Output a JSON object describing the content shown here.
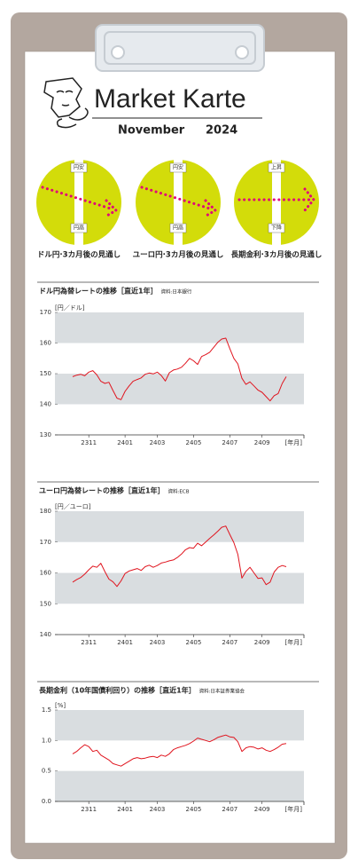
{
  "header": {
    "title": "Market Karte",
    "month": "November",
    "year": "2024"
  },
  "outlooks": [
    {
      "top": "円安",
      "bottom": "円高",
      "caption": "ドル円·3カ月後の見通し"
    },
    {
      "top": "円安",
      "bottom": "円高",
      "caption": "ユーロ円·3カ月後の見通し"
    },
    {
      "top": "上昇",
      "bottom": "下降",
      "caption": "長期金利·3カ月後の見通し"
    }
  ],
  "chart_data": [
    {
      "type": "line",
      "title": "ドル円為替レートの推移［直近1年］",
      "source": "資料:日本銀行",
      "y_label": "[円／ドル]",
      "x_label": "[年月]",
      "color": "#e0141e",
      "categories": [
        null,
        null,
        null,
        null,
        "2311",
        null,
        null,
        null,
        null,
        null,
        null,
        null,
        null,
        "2401",
        null,
        null,
        null,
        null,
        null,
        null,
        null,
        "2403",
        null,
        null,
        null,
        null,
        null,
        null,
        null,
        null,
        "2405",
        null,
        null,
        null,
        null,
        null,
        null,
        null,
        null,
        "2407",
        null,
        null,
        null,
        null,
        null,
        null,
        null,
        "2409",
        null,
        null,
        null,
        null,
        null,
        null
      ],
      "values": [
        149.0,
        149.5,
        149.8,
        149.3,
        150.5,
        151.0,
        149.6,
        147.5,
        146.8,
        147.2,
        144.5,
        142.0,
        141.5,
        144.2,
        146.0,
        147.5,
        148.1,
        148.6,
        149.8,
        150.2,
        149.9,
        150.5,
        149.4,
        147.6,
        150.3,
        151.2,
        151.5,
        152.1,
        153.4,
        155.0,
        154.2,
        153.0,
        155.6,
        156.2,
        157.0,
        158.6,
        160.2,
        161.3,
        161.6,
        158.2,
        155.0,
        153.2,
        148.5,
        146.5,
        147.3,
        146.0,
        144.6,
        143.9,
        142.5,
        141.1,
        142.8,
        143.5,
        146.8,
        149.0
      ],
      "ylim": [
        130,
        170
      ],
      "yticks": [
        130,
        140,
        150,
        160,
        170
      ]
    },
    {
      "type": "line",
      "title": "ユーロ円為替レートの推移［直近1年］",
      "source": "資料:ECB",
      "y_label": "[円／ユーロ]",
      "x_label": "[年月]",
      "color": "#e0141e",
      "categories": [
        null,
        null,
        null,
        null,
        "2311",
        null,
        null,
        null,
        null,
        null,
        null,
        null,
        null,
        "2401",
        null,
        null,
        null,
        null,
        null,
        null,
        null,
        "2403",
        null,
        null,
        null,
        null,
        null,
        null,
        null,
        null,
        "2405",
        null,
        null,
        null,
        null,
        null,
        null,
        null,
        null,
        "2407",
        null,
        null,
        null,
        null,
        null,
        null,
        null,
        "2409",
        null,
        null,
        null,
        null,
        null,
        null
      ],
      "values": [
        157.0,
        157.8,
        158.5,
        159.6,
        161.0,
        162.2,
        161.8,
        163.1,
        160.4,
        158.0,
        157.1,
        155.6,
        157.4,
        159.8,
        160.6,
        161.0,
        161.4,
        160.8,
        162.0,
        162.5,
        161.8,
        162.4,
        163.2,
        163.5,
        163.9,
        164.2,
        165.0,
        166.1,
        167.5,
        168.2,
        168.0,
        169.6,
        168.8,
        170.0,
        171.2,
        172.3,
        173.5,
        174.8,
        175.2,
        172.5,
        169.8,
        166.0,
        158.3,
        160.5,
        161.8,
        160.0,
        158.2,
        158.4,
        156.2,
        157.0,
        160.3,
        161.8,
        162.4,
        162.0
      ],
      "ylim": [
        140,
        180
      ],
      "yticks": [
        140,
        150,
        160,
        170,
        180
      ]
    },
    {
      "type": "line",
      "title": "長期金利（10年国債利回り）の推移［直近1年］",
      "source": "資料:日本証券業協会",
      "y_label": "[%]",
      "x_label": "[年月]",
      "color": "#e0141e",
      "categories": [
        null,
        null,
        null,
        null,
        "2311",
        null,
        null,
        null,
        null,
        null,
        null,
        null,
        null,
        "2401",
        null,
        null,
        null,
        null,
        null,
        null,
        null,
        "2403",
        null,
        null,
        null,
        null,
        null,
        null,
        null,
        null,
        "2405",
        null,
        null,
        null,
        null,
        null,
        null,
        null,
        null,
        "2407",
        null,
        null,
        null,
        null,
        null,
        null,
        null,
        "2409",
        null,
        null,
        null,
        null,
        null,
        null
      ],
      "values": [
        0.78,
        0.82,
        0.88,
        0.93,
        0.9,
        0.82,
        0.84,
        0.76,
        0.72,
        0.68,
        0.62,
        0.6,
        0.58,
        0.62,
        0.66,
        0.7,
        0.72,
        0.7,
        0.71,
        0.73,
        0.74,
        0.72,
        0.76,
        0.74,
        0.78,
        0.85,
        0.88,
        0.9,
        0.92,
        0.95,
        0.99,
        1.04,
        1.02,
        1.0,
        0.98,
        1.01,
        1.05,
        1.07,
        1.09,
        1.06,
        1.05,
        0.98,
        0.82,
        0.88,
        0.9,
        0.89,
        0.86,
        0.88,
        0.84,
        0.82,
        0.85,
        0.89,
        0.94,
        0.95
      ],
      "ylim": [
        0,
        1.5
      ],
      "yticks": [
        {
          "value": 0,
          "label": "0.0"
        },
        {
          "value": 0.5,
          "label": "0.5"
        },
        {
          "value": 1,
          "label": "1.0"
        },
        {
          "value": 1.5,
          "label": "1.5"
        }
      ]
    }
  ]
}
